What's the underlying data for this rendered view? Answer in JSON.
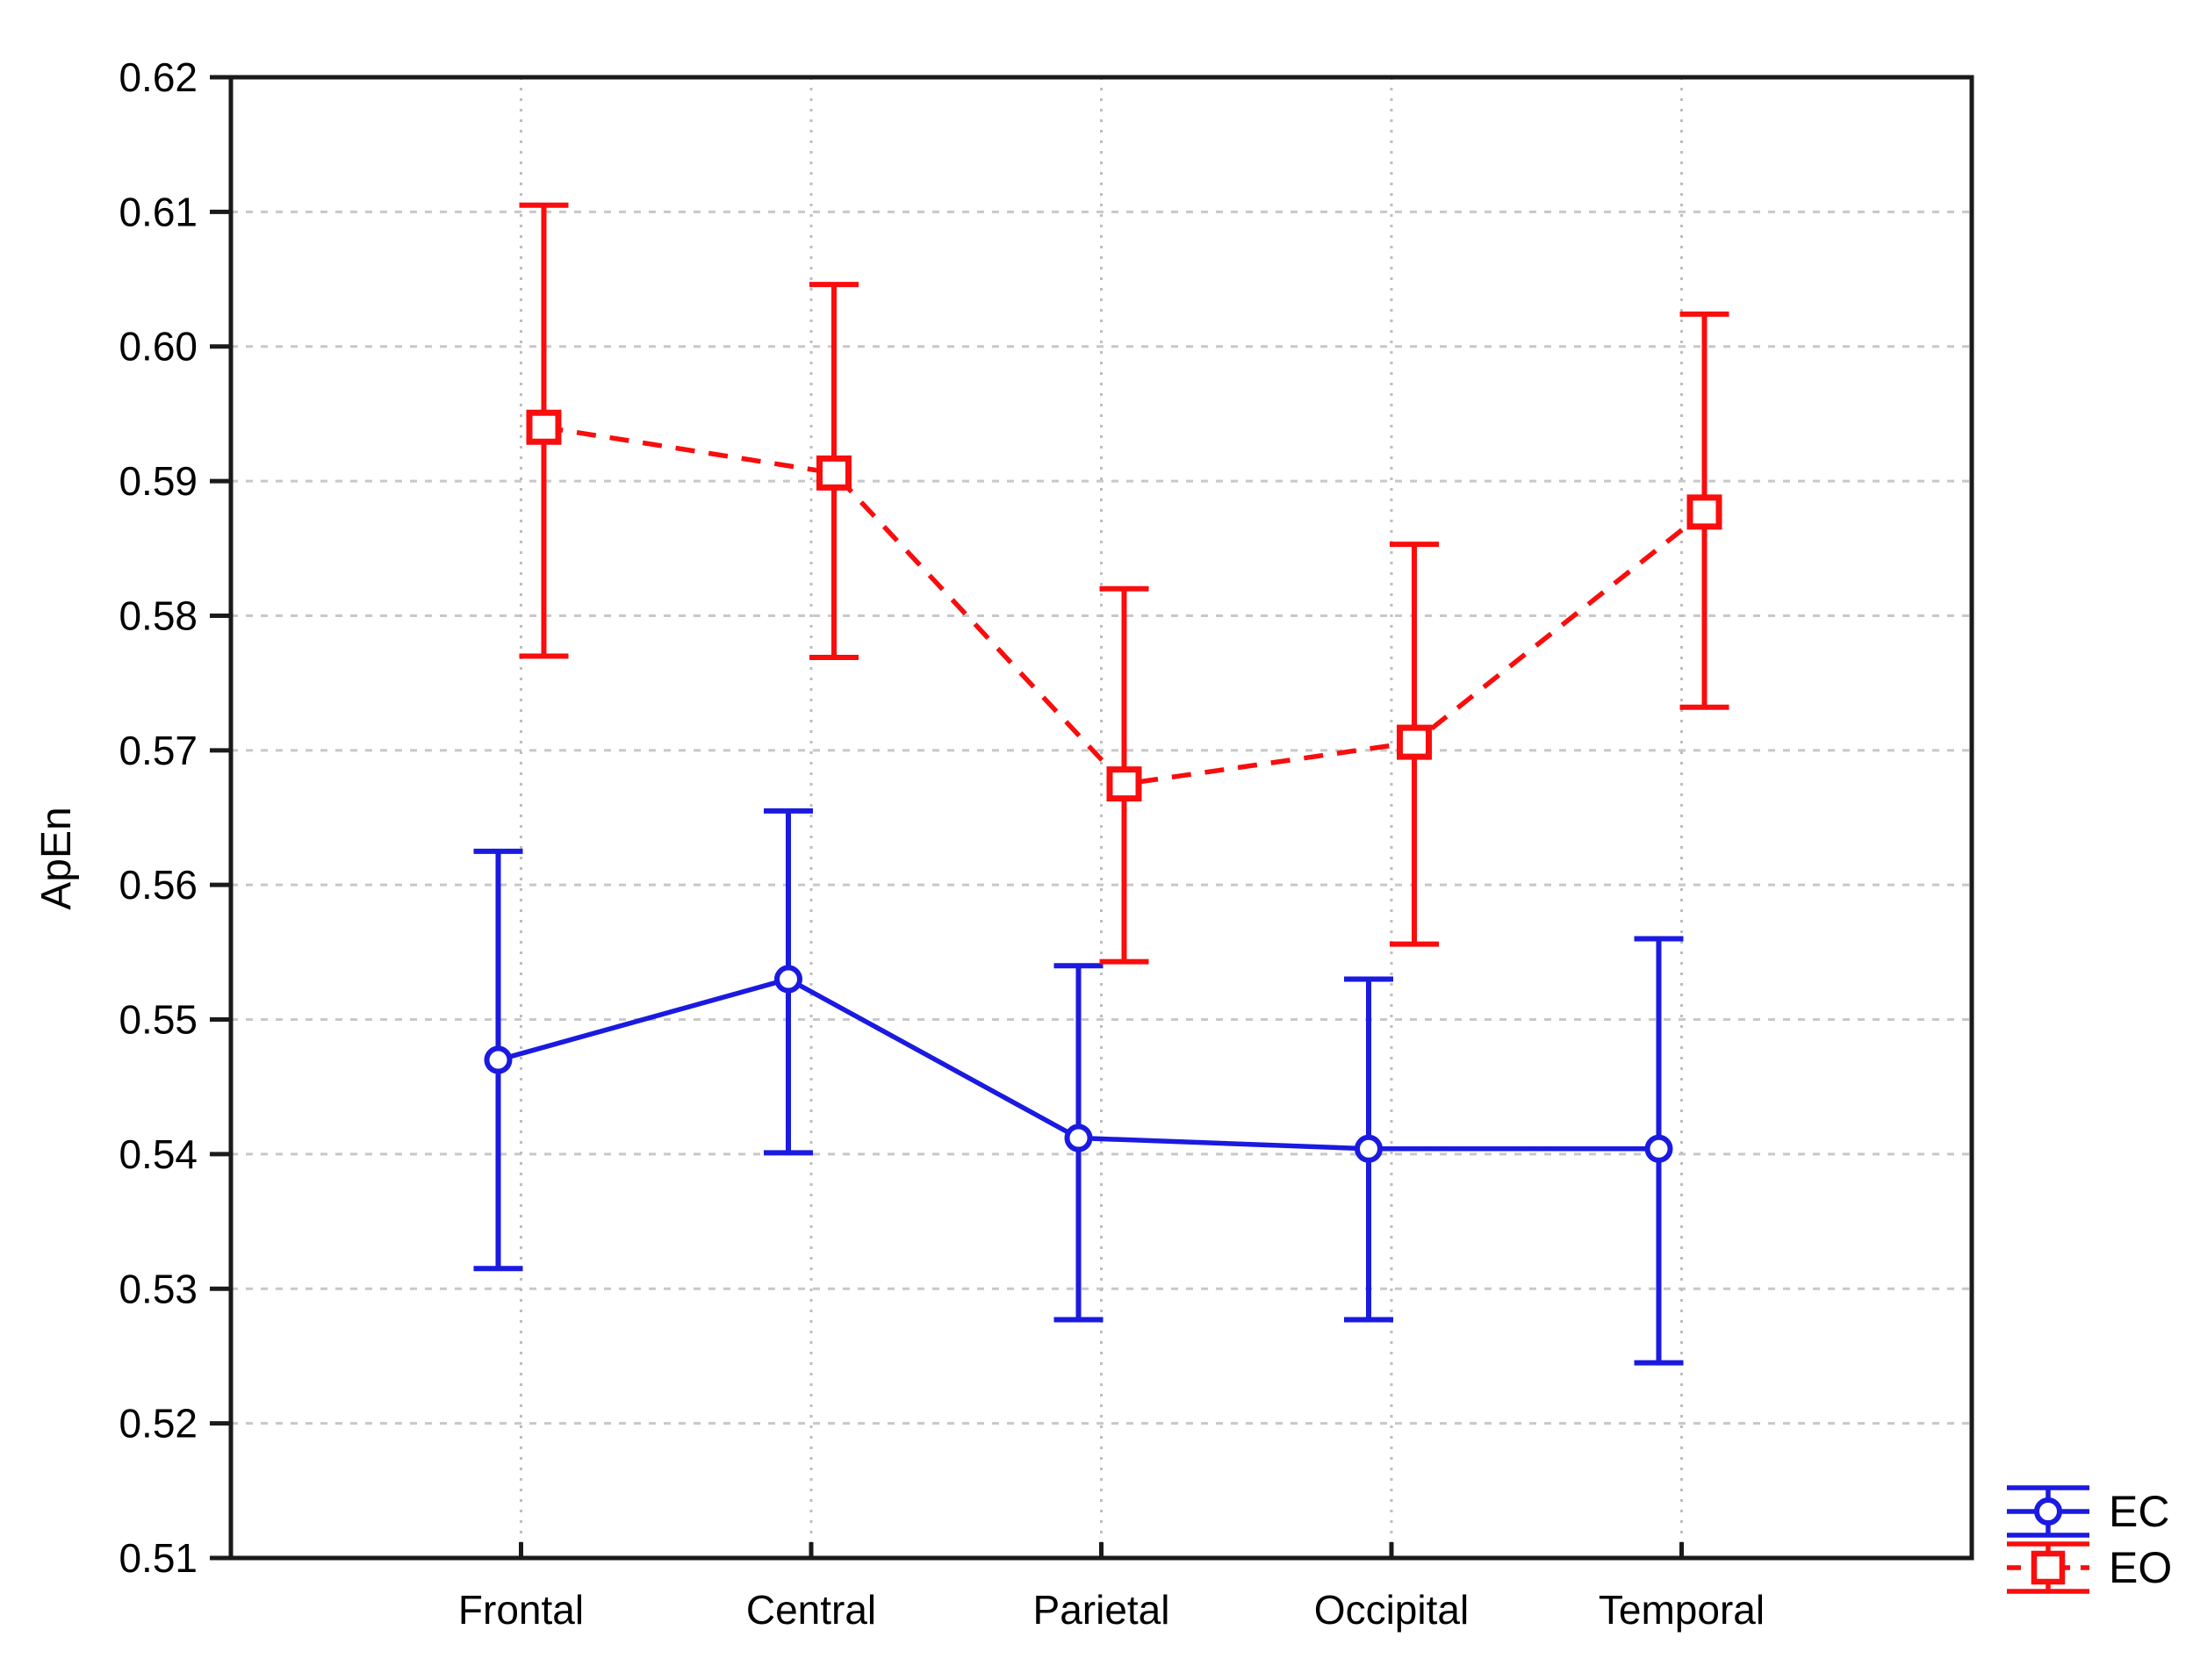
{
  "chart_data": {
    "type": "line",
    "title": "",
    "xlabel": "",
    "ylabel": "ApEn",
    "categories": [
      "Frontal",
      "Central",
      "Parietal",
      "Occipital",
      "Temporal"
    ],
    "ylim": [
      0.51,
      0.62
    ],
    "ytick_step": 0.01,
    "ytick_labels": [
      "0.51",
      "0.52",
      "0.53",
      "0.54",
      "0.55",
      "0.56",
      "0.57",
      "0.58",
      "0.59",
      "0.60",
      "0.61",
      "0.62"
    ],
    "grid": true,
    "legend_position": "bottom-right",
    "error_bars": "mean with upper/lower whiskers",
    "series": [
      {
        "name": "EC",
        "color": "#1a1ae0",
        "line_style": "solid",
        "marker": "circle",
        "values": [
          0.547,
          0.553,
          0.5412,
          0.5404,
          0.5404
        ],
        "upper": [
          0.5625,
          0.5655,
          0.554,
          0.553,
          0.556
        ],
        "lower": [
          0.5315,
          0.5401,
          0.5277,
          0.5277,
          0.5245
        ]
      },
      {
        "name": "EO",
        "color": "#f90d0d",
        "line_style": "dashed",
        "marker": "square",
        "values": [
          0.594,
          0.5906,
          0.5675,
          0.5706,
          0.5877
        ],
        "upper": [
          0.6105,
          0.6046,
          0.582,
          0.5853,
          0.6024
        ],
        "lower": [
          0.577,
          0.5769,
          0.5543,
          0.5556,
          0.5732
        ]
      }
    ],
    "colors": {
      "axis": "#1a1a1a",
      "text": "#000000",
      "grid_horizontal": "#c8c8c8",
      "grid_vertical": "#bdbdbd",
      "marker_fill": "#ffffff"
    }
  }
}
